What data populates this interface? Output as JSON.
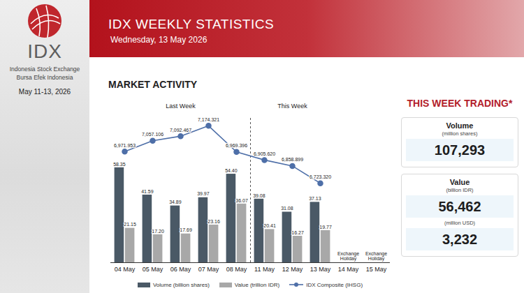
{
  "sidebar": {
    "name": "IDX",
    "lines": [
      "Indonesia Stock Exchange",
      "Bursa Efek Indonesia"
    ],
    "date": "May 11-13, 2026"
  },
  "header": {
    "title": "IDX WEEKLY STATISTICS",
    "subtitle": "Wednesday, 13 May 2026"
  },
  "chart_data": {
    "type": "bar",
    "title": "MARKET ACTIVITY",
    "categories": [
      "04 May",
      "05 May",
      "06 May",
      "07 May",
      "08 May",
      "11 May",
      "12 May",
      "13 May",
      "14 May",
      "15 May"
    ],
    "series": [
      {
        "name": "Volume (billion shares)",
        "type": "bar",
        "color": "#4a5966",
        "values": [
          58.35,
          41.59,
          34.89,
          39.97,
          54.4,
          39.08,
          31.08,
          37.13,
          null,
          null
        ],
        "value_labels": [
          "58.35",
          "41.59",
          "34.89",
          "39.97",
          "54.40",
          "39.08",
          "31.08",
          "37.13",
          null,
          null
        ]
      },
      {
        "name": "Value (trillion IDR)",
        "type": "bar",
        "color": "#a8a8a8",
        "values": [
          21.15,
          17.2,
          17.69,
          23.16,
          36.07,
          20.41,
          16.27,
          19.77,
          null,
          null
        ],
        "value_labels": [
          "21.15",
          "17.20",
          "17.69",
          "23.16",
          "36.07",
          "20.41",
          "16.27",
          "19.77",
          null,
          null
        ]
      },
      {
        "name": "IDX Composite (IHSG)",
        "type": "line",
        "axis": "y2",
        "color": "#4e6fa8",
        "marker": "circle",
        "values": [
          6971.953,
          7057.106,
          7092.467,
          7174.321,
          6969.396,
          6905.62,
          6858.899,
          6723.32,
          null,
          null
        ],
        "value_labels": [
          "6,971.953",
          "7,057.106",
          "7,092.467",
          "7,174.321",
          "6,969.396",
          "6,905.620",
          "6,858.899",
          "6,723.320",
          null,
          null
        ]
      }
    ],
    "ylim": [
      0,
      90
    ],
    "y2lim": [
      6100,
      7250
    ],
    "tick_labels": "x",
    "data_labels": true,
    "legend": "bottom",
    "periods": [
      {
        "text": "Last Week",
        "categories": [
          "04 May",
          "05 May",
          "06 May",
          "07 May",
          "08 May"
        ]
      },
      {
        "text": "This Week",
        "categories": [
          "11 May",
          "12 May",
          "13 May"
        ]
      }
    ],
    "annotations": [
      {
        "category": "14 May",
        "text": "Exchange Holiday"
      },
      {
        "category": "15 May",
        "text": "Exchange Holiday"
      }
    ]
  },
  "trading_summary": {
    "title": "THIS WEEK TRADING*",
    "cards": [
      {
        "label": "Volume",
        "items": [
          {
            "unit": "(million shares)",
            "value": "107,293"
          }
        ]
      },
      {
        "label": "Value",
        "items": [
          {
            "unit": "(billion IDR)",
            "value": "56,462"
          },
          {
            "unit": "(million USD)",
            "value": "3,232"
          }
        ]
      }
    ]
  }
}
